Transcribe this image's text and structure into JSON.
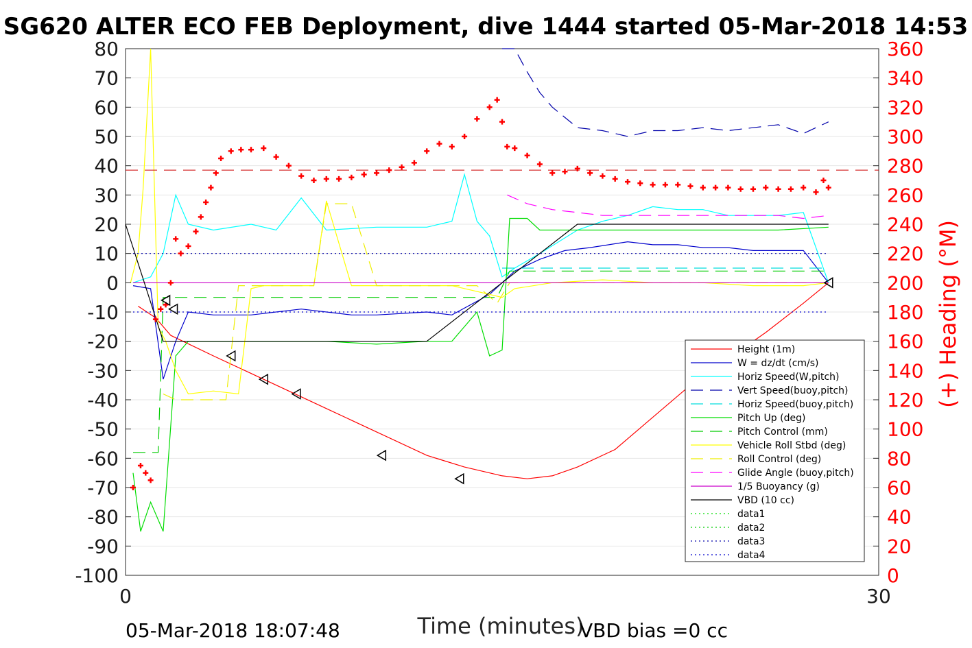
{
  "chart_data": {
    "type": "line",
    "title": "SG620 ALTER ECO FEB Deployment, dive 1444 started 05-Mar-2018 14:53",
    "xlabel": "Time (minutes)",
    "ylabel_right": "(+) Heading (°M)",
    "xlim": [
      0,
      30
    ],
    "ylim_left": [
      -100,
      80
    ],
    "ylim_right": [
      0,
      360
    ],
    "x_ticks": [
      "0",
      "30"
    ],
    "y_ticks_left": [
      "80",
      "70",
      "60",
      "50",
      "40",
      "30",
      "20",
      "10",
      "0",
      "-10",
      "-20",
      "-30",
      "-40",
      "-50",
      "-60",
      "-70",
      "-80",
      "-90",
      "-100"
    ],
    "y_ticks_right": [
      "360",
      "340",
      "320",
      "300",
      "280",
      "260",
      "240",
      "220",
      "200",
      "180",
      "160",
      "140",
      "120",
      "100",
      "80",
      "60",
      "40",
      "20",
      "0"
    ],
    "footer_left": "05-Mar-2018 18:07:48",
    "footer_right": "VBD bias =0 cc",
    "legend_position": "lower-right",
    "colors": {
      "height": "#ff0000",
      "w": "#0000cc",
      "horiz_w": "#00ffff",
      "vert_buoy": "#0000aa",
      "horiz_buoy": "#00dddd",
      "pitch": "#00dd00",
      "pitch_ctrl": "#00cc00",
      "roll": "#ffff00",
      "roll_ctrl": "#eeee00",
      "glide": "#ff00ff",
      "buoy": "#cc00cc",
      "vbd": "#000000",
      "heading": "#ff0000",
      "heading_target": "#cc0000"
    },
    "series": [
      {
        "name": "Height (1m)",
        "style": "solid",
        "color_key": "height",
        "x": [
          0.5,
          1.2,
          1.8,
          3.5,
          5.0,
          6.5,
          8.0,
          10.0,
          12.0,
          13.5,
          15.0,
          16.0,
          17.0,
          18.0,
          19.5,
          21.0,
          22.5,
          24.0,
          25.5,
          27.0,
          28.0
        ],
        "y": [
          -8,
          -12,
          -18,
          -25,
          -31,
          -37,
          -43,
          -51,
          -59,
          -63,
          -66,
          -67,
          -66,
          -63,
          -57,
          -46,
          -35,
          -26,
          -17,
          -7,
          0
        ]
      },
      {
        "name": "W = dz/dt (cm/s)",
        "style": "solid",
        "color_key": "w",
        "x": [
          0.3,
          1.0,
          1.5,
          2.0,
          2.5,
          3.5,
          5,
          7,
          9,
          10,
          12,
          13,
          14.5,
          15,
          15.5,
          16.5,
          17.5,
          18.5,
          20,
          21,
          22,
          23,
          24,
          25,
          26,
          27,
          28
        ],
        "y": [
          -1,
          -2,
          -33,
          -20,
          -10,
          -11,
          -11,
          -9,
          -11,
          -11,
          -10,
          -11,
          -4,
          0,
          4,
          8,
          11,
          12,
          14,
          13,
          13,
          12,
          12,
          11,
          11,
          11,
          0
        ]
      },
      {
        "name": "Horiz Speed(W,pitch)",
        "style": "solid",
        "color_key": "horiz_w",
        "x": [
          0.3,
          1,
          1.5,
          2,
          2.5,
          3.5,
          5,
          6,
          7,
          8,
          10,
          12,
          13,
          13.5,
          14,
          14.5,
          15,
          15.5,
          16.5,
          18,
          19,
          20,
          21,
          22,
          23,
          24,
          25,
          26,
          27,
          28
        ],
        "y": [
          0,
          2,
          10,
          30,
          20,
          18,
          20,
          18,
          29,
          18,
          19,
          19,
          21,
          37,
          21,
          16,
          2,
          5,
          10,
          18,
          21,
          23,
          26,
          25,
          25,
          23,
          23,
          23,
          24,
          0
        ]
      },
      {
        "name": "Vert Speed(buoy,pitch)",
        "style": "dashed",
        "color_key": "vert_buoy",
        "x": [
          15,
          15.5,
          16,
          16.5,
          17,
          18,
          19,
          20,
          21,
          22,
          23,
          24,
          25,
          26,
          27,
          28
        ],
        "y": [
          80,
          80,
          72,
          65,
          60,
          53,
          52,
          50,
          52,
          52,
          53,
          52,
          53,
          54,
          51,
          55
        ]
      },
      {
        "name": "Horiz Speed(buoy,pitch)",
        "style": "dashed",
        "color_key": "horiz_buoy",
        "x": [
          15,
          28
        ],
        "y": [
          5,
          5
        ]
      },
      {
        "name": "Pitch Up (deg)",
        "style": "solid",
        "color_key": "pitch",
        "x": [
          0.3,
          0.6,
          1.0,
          1.5,
          2,
          2.5,
          3,
          4,
          5,
          6,
          7,
          8,
          10,
          12,
          13,
          14,
          14.5,
          15,
          15.3,
          16,
          16.5,
          18,
          20,
          22,
          24,
          26,
          28
        ],
        "y": [
          -65,
          -85,
          -75,
          -85,
          -25,
          -20,
          -20,
          -20,
          -20,
          -20,
          -20,
          -20,
          -21,
          -20,
          -20,
          -10,
          -25,
          -23,
          22,
          22,
          18,
          18,
          18,
          18,
          18,
          18,
          19
        ]
      },
      {
        "name": "Pitch Control (mm)",
        "style": "dashed",
        "color_key": "pitch_ctrl",
        "x": [
          0.3,
          1.3,
          1.5,
          2,
          14.8,
          15.3,
          28
        ],
        "y": [
          -58,
          -58,
          -5,
          -5,
          -5,
          4,
          4
        ]
      },
      {
        "name": "Vehicle Roll Stbd (deg)",
        "style": "solid",
        "color_key": "roll",
        "x": [
          0.2,
          0.5,
          0.7,
          1.0,
          1.3,
          1.6,
          2,
          2.5,
          3.5,
          4.5,
          5,
          5.5,
          6,
          7.5,
          8,
          9,
          10,
          12,
          13,
          14,
          15,
          15.5,
          17,
          19,
          21,
          23,
          25,
          27,
          28
        ],
        "y": [
          0,
          10,
          32,
          80,
          -15,
          -20,
          -30,
          -38,
          -37,
          -38,
          -2,
          -1,
          -1,
          -1,
          28,
          -1,
          -1,
          -1,
          -1,
          -3,
          -5,
          -2,
          0,
          1,
          0,
          0,
          -1,
          -1,
          0
        ]
      },
      {
        "name": "Roll Control (deg)",
        "style": "dashed",
        "color_key": "roll_ctrl",
        "x": [
          1.5,
          2,
          3,
          4,
          4.5,
          7.5,
          8,
          9,
          10,
          14,
          14.8,
          15.3,
          28
        ],
        "y": [
          -38,
          -40,
          -40,
          -40,
          -1,
          -1,
          27,
          27,
          -1,
          -1,
          -7,
          0,
          0
        ]
      },
      {
        "name": "Glide Angle (buoy,pitch)",
        "style": "dashed",
        "color_key": "glide",
        "x": [
          15.2,
          16,
          17,
          18,
          19,
          20,
          21,
          22,
          23,
          24,
          25,
          26,
          27,
          28
        ],
        "y": [
          30,
          27,
          25,
          24,
          23,
          23,
          23,
          23,
          23,
          23,
          23,
          23,
          22,
          23
        ]
      },
      {
        "name": "1/5 Buoyancy (g)",
        "style": "solid",
        "color_key": "buoy",
        "x": [
          0.3,
          28
        ],
        "y": [
          0,
          0
        ]
      },
      {
        "name": "VBD (10 cc)",
        "style": "solid",
        "color_key": "vbd",
        "x": [
          0,
          1.5,
          3,
          8,
          12,
          15,
          18,
          28
        ],
        "y": [
          20,
          -20,
          -20,
          -20,
          -20,
          0,
          20,
          20
        ]
      },
      {
        "name": "data1",
        "style": "dotted",
        "color_key": "pitch",
        "x": [],
        "y": []
      },
      {
        "name": "data2",
        "style": "dotted",
        "color_key": "pitch_ctrl",
        "x": [],
        "y": []
      },
      {
        "name": "data3",
        "style": "dotted",
        "color_key": "vert_buoy",
        "x": [
          0.3,
          28
        ],
        "y": [
          10,
          10
        ]
      },
      {
        "name": "data4",
        "style": "dotted",
        "color_key": "w",
        "x": [
          0.3,
          28
        ],
        "y": [
          -10,
          -10
        ]
      }
    ],
    "heading": {
      "axis": "right",
      "target": 277,
      "x": [
        0.3,
        0.6,
        0.8,
        1.0,
        1.2,
        1.4,
        1.6,
        1.8,
        2.0,
        2.2,
        2.5,
        2.8,
        3.0,
        3.2,
        3.4,
        3.6,
        3.8,
        4.2,
        4.6,
        5.0,
        5.5,
        6.0,
        6.5,
        7.0,
        7.5,
        8.0,
        8.5,
        9.0,
        9.5,
        10.0,
        10.5,
        11.0,
        11.5,
        12.0,
        12.5,
        13.0,
        13.5,
        14.0,
        14.5,
        14.8,
        15.0,
        15.2,
        15.5,
        16.0,
        16.5,
        17.0,
        17.5,
        18.0,
        18.5,
        19.0,
        19.5,
        20.0,
        20.5,
        21.0,
        21.5,
        22.0,
        22.5,
        23.0,
        23.5,
        24.0,
        24.5,
        25.0,
        25.5,
        26.0,
        26.5,
        27.0,
        27.5,
        27.8,
        28.0
      ],
      "y": [
        60,
        75,
        70,
        65,
        175,
        182,
        185,
        200,
        230,
        220,
        225,
        235,
        245,
        255,
        265,
        275,
        285,
        290,
        291,
        291,
        292,
        286,
        280,
        273,
        270,
        271,
        271,
        272,
        274,
        275,
        277,
        279,
        282,
        290,
        295,
        293,
        300,
        312,
        320,
        325,
        310,
        293,
        292,
        287,
        281,
        275,
        276,
        278,
        275,
        273,
        271,
        269,
        268,
        267,
        267,
        267,
        266,
        265,
        265,
        265,
        264,
        264,
        265,
        264,
        264,
        265,
        262,
        270,
        265
      ]
    },
    "markers": [
      {
        "x": 1.6,
        "y": -6
      },
      {
        "x": 1.9,
        "y": -9
      },
      {
        "x": 4.2,
        "y": -25
      },
      {
        "x": 5.5,
        "y": -33
      },
      {
        "x": 6.8,
        "y": -38
      },
      {
        "x": 10.2,
        "y": -59
      },
      {
        "x": 13.3,
        "y": -67
      },
      {
        "x": 28.0,
        "y": 0
      }
    ]
  }
}
